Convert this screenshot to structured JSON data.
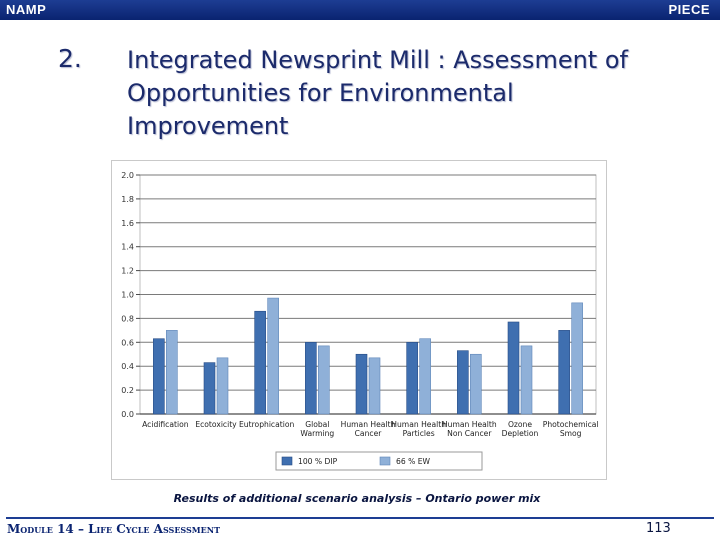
{
  "header": {
    "left_brand": "NAMP",
    "right_brand": "PIECE"
  },
  "slide": {
    "number": "2.",
    "title_lines": [
      "Integrated Newsprint Mill : Assessment of",
      "Opportunities for Environmental",
      "Improvement"
    ]
  },
  "caption": "Results of additional scenario analysis – Ontario power mix",
  "footer": {
    "module": "Module 14 – Life Cycle Assessment",
    "page": "113"
  },
  "chart_data": {
    "type": "bar",
    "categories": [
      [
        "Acidification"
      ],
      [
        "Ecotoxicity"
      ],
      [
        "Eutrophication"
      ],
      [
        "Global",
        "Warming"
      ],
      [
        "Human Health",
        "Cancer"
      ],
      [
        "Human Health",
        "Particles"
      ],
      [
        "Human Health",
        "Non Cancer"
      ],
      [
        "Ozone",
        "Depletion"
      ],
      [
        "Photochemical",
        "Smog"
      ]
    ],
    "series": [
      {
        "name": "100 % DIP",
        "color": "#3f6fb0",
        "values": [
          0.63,
          0.43,
          0.86,
          0.6,
          0.5,
          0.6,
          0.53,
          0.77,
          0.7
        ]
      },
      {
        "name": "66 % EW",
        "color": "#8fb0d8",
        "values": [
          0.7,
          0.47,
          0.97,
          0.57,
          0.47,
          0.63,
          0.5,
          0.57,
          0.93
        ]
      }
    ],
    "ylim": [
      0,
      2.0
    ],
    "yticks": [
      "0.0",
      "0.2",
      "0.4",
      "0.6",
      "0.8",
      "1.0",
      "1.2",
      "1.4",
      "1.6",
      "1.8",
      "2.0"
    ],
    "grid": true,
    "legend": "bottom"
  }
}
